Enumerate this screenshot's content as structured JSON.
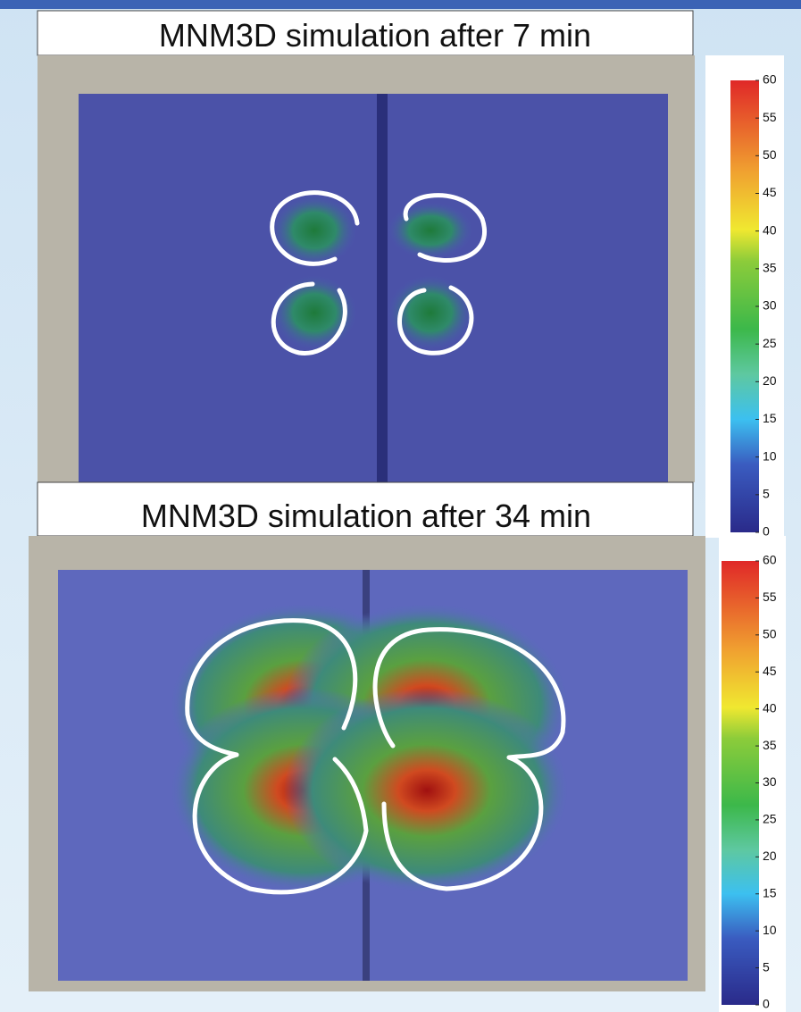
{
  "panels": [
    {
      "title": "MNM3D simulation after 7 min",
      "colorbar": {
        "ticks": [
          0,
          5,
          10,
          15,
          20,
          25,
          30,
          35,
          40,
          45,
          50,
          55,
          60
        ]
      }
    },
    {
      "title": "MNM3D simulation after 34 min",
      "colorbar": {
        "ticks": [
          0,
          5,
          10,
          15,
          20,
          25,
          30,
          35,
          40,
          45,
          50,
          55,
          60
        ]
      }
    }
  ]
}
